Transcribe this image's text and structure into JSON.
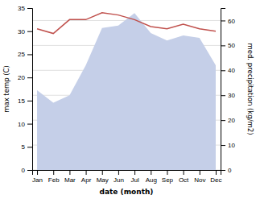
{
  "chart_data": {
    "type": "line",
    "categories": [
      "Jan",
      "Feb",
      "Mar",
      "Apr",
      "May",
      "Jun",
      "Jul",
      "Aug",
      "Sep",
      "Oct",
      "Nov",
      "Dec"
    ],
    "xlabel": "date (month)",
    "ylabel": "max temp (C)",
    "y2label": "med. precipitation (kg/m2)",
    "series": [
      {
        "type": "area",
        "axis": "y2",
        "color": "#c5cfe8",
        "values": [
          32,
          27,
          30,
          42,
          57,
          58,
          63,
          55,
          52,
          54,
          53,
          42
        ]
      },
      {
        "type": "line",
        "color": "#c0514d",
        "values": [
          30.5,
          29.5,
          32.5,
          32.5,
          34.0,
          33.5,
          32.5,
          31.0,
          30.5,
          31.5,
          30.5,
          30.0
        ]
      }
    ],
    "ylim": [
      0,
      35
    ],
    "yticks": [
      0,
      5,
      10,
      15,
      20,
      25,
      30,
      35
    ],
    "y2lim": [
      0,
      65
    ],
    "y2ticks": [
      0,
      10,
      20,
      30,
      40,
      50,
      60
    ],
    "grid": true
  }
}
